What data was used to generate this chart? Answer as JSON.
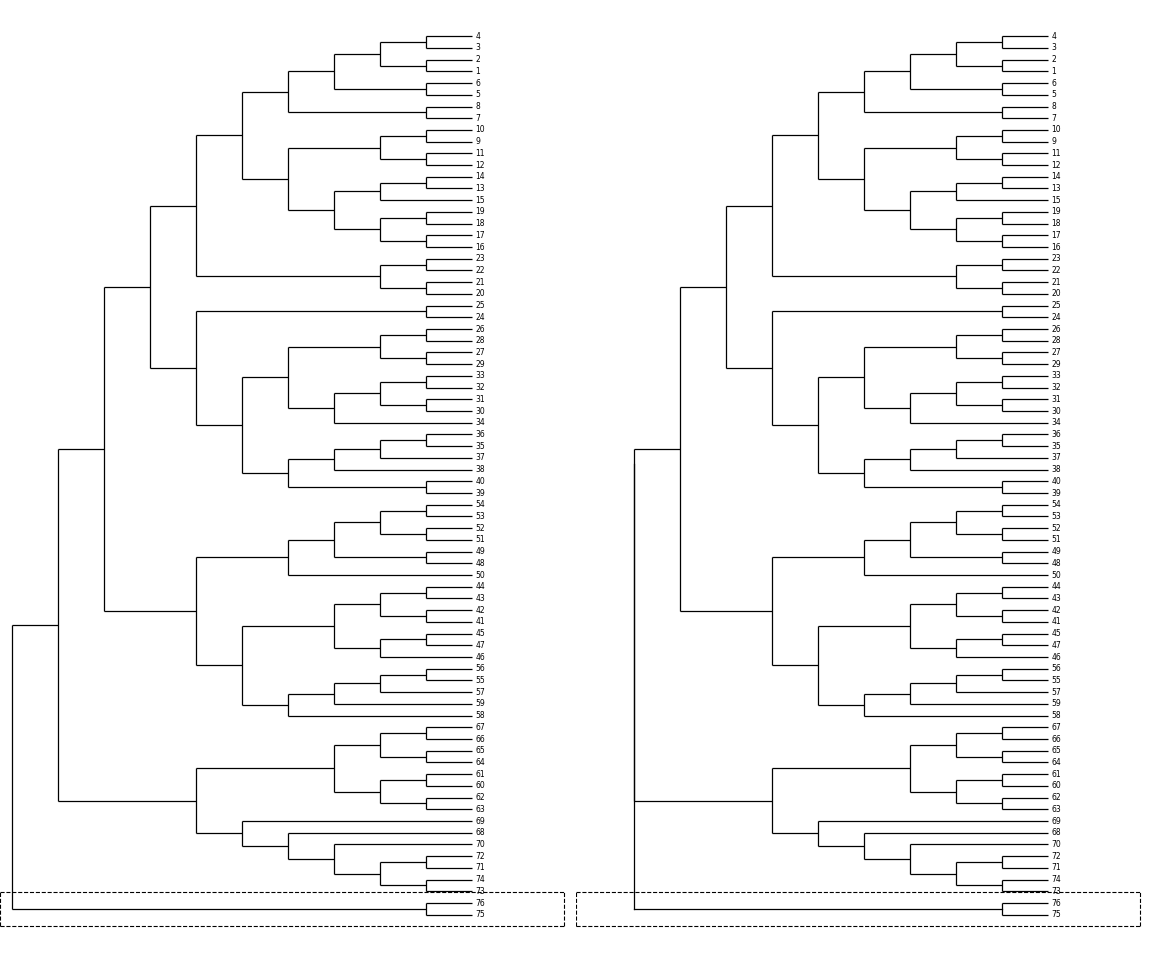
{
  "leaf_order_A": [
    4,
    3,
    2,
    1,
    6,
    5,
    8,
    7,
    10,
    9,
    11,
    12,
    14,
    13,
    15,
    19,
    18,
    17,
    16,
    23,
    22,
    21,
    20,
    25,
    24,
    26,
    28,
    27,
    29,
    33,
    32,
    31,
    30,
    34,
    36,
    35,
    37,
    38,
    40,
    39,
    54,
    53,
    52,
    51,
    49,
    48,
    50,
    44,
    43,
    42,
    41,
    45,
    47,
    46,
    56,
    55,
    57,
    59,
    58,
    67,
    66,
    65,
    64,
    61,
    60,
    62,
    63,
    69,
    68,
    70,
    72,
    71,
    74,
    73,
    76,
    75
  ],
  "leaf_label_fontsize": 5.5,
  "lw": 0.8
}
